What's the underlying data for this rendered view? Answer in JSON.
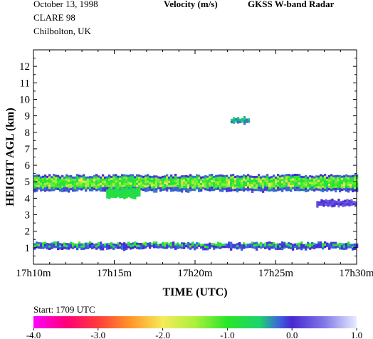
{
  "header": {
    "date": "October  13, 1998",
    "campaign": "CLARE 98",
    "location": "Chilbolton, UK",
    "quantity": "Velocity (m/s)",
    "instrument": "GKSS  W-band Radar"
  },
  "footer": {
    "start_label": "Start: 1709 UTC"
  },
  "chart_data": {
    "type": "heatmap",
    "title": "Velocity (m/s)",
    "xlabel": "TIME (UTC)",
    "ylabel": "HEIGHT AGL (km)",
    "xlim": [
      10,
      30
    ],
    "ylim": [
      0,
      13
    ],
    "x_ticks": [
      {
        "value": 10,
        "label": "17h10m"
      },
      {
        "value": 15,
        "label": "17h15m"
      },
      {
        "value": 20,
        "label": "17h20m"
      },
      {
        "value": 25,
        "label": "17h25m"
      },
      {
        "value": 30,
        "label": "17h30m"
      }
    ],
    "y_ticks": [
      1,
      2,
      3,
      4,
      5,
      6,
      7,
      8,
      9,
      10,
      11,
      12
    ],
    "colorbar": {
      "range": [
        -4.0,
        1.0
      ],
      "ticks": [
        "-4.0",
        "-3.0",
        "-2.0",
        "-1.0",
        "0.0",
        "1.0"
      ]
    },
    "features": [
      {
        "name": "mid-level cloud layer",
        "x_range": [
          10,
          30
        ],
        "height_km": [
          4.5,
          5.4
        ],
        "velocity_ms": -1.2
      },
      {
        "name": "layer base at 4.1–4.3 km",
        "x_range": [
          14.5,
          16.5
        ],
        "height_km": [
          4.1,
          4.6
        ],
        "velocity_ms": -0.8
      },
      {
        "name": "low-level layer",
        "x_range": [
          10,
          30
        ],
        "height_km": [
          1.0,
          1.3
        ],
        "velocity_ms": -0.3
      },
      {
        "name": "small echo near 9 km",
        "x_range": [
          22.2,
          23.3
        ],
        "height_km": [
          8.6,
          8.9
        ],
        "velocity_ms": -0.4
      },
      {
        "name": "thin echo near 3.8 km",
        "x_range": [
          27.5,
          30
        ],
        "height_km": [
          3.6,
          3.9
        ],
        "velocity_ms": 0.2
      }
    ],
    "colors": {
      "cloud_core": "#20e020",
      "cloud_edge": "#4444cc",
      "colorbar_low": "#ff00ff",
      "colorbar_high": "#e8ecff"
    }
  }
}
